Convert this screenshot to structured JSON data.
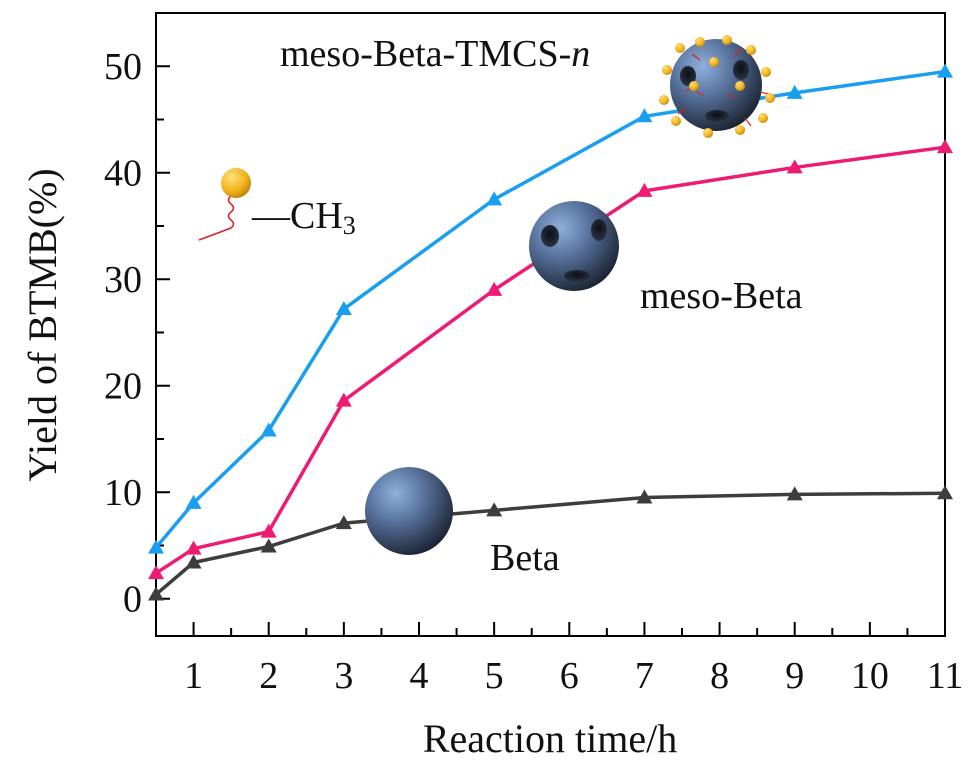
{
  "chart_data": {
    "type": "line",
    "xlabel": "Reaction time/h",
    "ylabel": "Yield of BTMB(%)",
    "xlim": [
      0.5,
      11
    ],
    "ylim": [
      -3.5,
      55
    ],
    "x_ticks": [
      1,
      2,
      3,
      4,
      5,
      6,
      7,
      8,
      9,
      10,
      11
    ],
    "y_ticks": [
      0,
      10,
      20,
      30,
      40,
      50
    ],
    "grid": false,
    "legend": "none",
    "series": [
      {
        "name": "meso-Beta-TMCS-n",
        "color": "#1a9ff0",
        "marker": "triangle",
        "x": [
          0.5,
          1,
          2,
          3,
          5,
          7,
          9,
          11
        ],
        "y": [
          4.8,
          9.0,
          15.8,
          27.2,
          37.5,
          45.3,
          47.5,
          49.5
        ]
      },
      {
        "name": "meso-Beta",
        "color": "#ee1a73",
        "marker": "triangle",
        "x": [
          0.5,
          1,
          2,
          3,
          5,
          7,
          9,
          11
        ],
        "y": [
          2.4,
          4.7,
          6.3,
          18.6,
          29.0,
          38.3,
          40.5,
          42.4
        ]
      },
      {
        "name": "Beta",
        "color": "#3d3d3d",
        "marker": "triangle",
        "x": [
          0.5,
          1,
          2,
          3,
          5,
          7,
          9,
          11
        ],
        "y": [
          0.4,
          3.4,
          4.9,
          7.1,
          8.3,
          9.5,
          9.8,
          9.9
        ]
      }
    ],
    "annotations": {
      "ch3_label_prefix": "—CH",
      "ch3_label_subscript": "3"
    }
  }
}
